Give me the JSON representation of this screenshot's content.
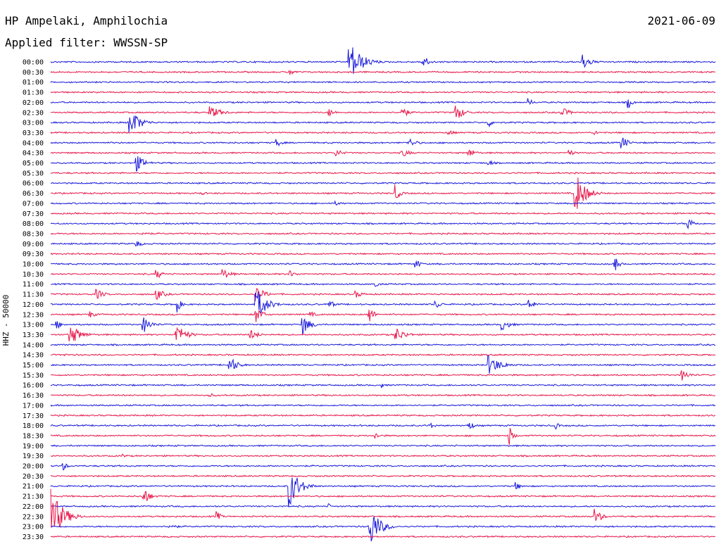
{
  "header": {
    "station": "HP Ampelaki, Amphilochia",
    "date": "2021-06-09",
    "filter": "Applied filter: WWSSN-SP"
  },
  "chart_data": {
    "type": "line",
    "title": "HP Ampelaki, Amphilochia",
    "ylabel": "HHZ - 50000",
    "colors": [
      "#1a1adc",
      "#e8174a"
    ],
    "rows": [
      {
        "label": "00:00",
        "events": [
          [
            0.45,
            30,
            0.6
          ],
          [
            0.56,
            10,
            0.3
          ],
          [
            0.8,
            12,
            0.4
          ]
        ]
      },
      {
        "label": "00:30",
        "events": [
          [
            0.36,
            5,
            0.3
          ]
        ]
      },
      {
        "label": "01:00",
        "events": []
      },
      {
        "label": "01:30",
        "events": []
      },
      {
        "label": "02:00",
        "events": [
          [
            0.72,
            6,
            0.2
          ],
          [
            0.87,
            8,
            0.2
          ]
        ]
      },
      {
        "label": "02:30",
        "events": [
          [
            0.24,
            9,
            0.6
          ],
          [
            0.42,
            6,
            0.3
          ],
          [
            0.53,
            8,
            0.3
          ],
          [
            0.61,
            12,
            0.4
          ],
          [
            0.77,
            7,
            0.4
          ]
        ]
      },
      {
        "label": "03:00",
        "events": [
          [
            0.12,
            20,
            0.5
          ],
          [
            0.66,
            6,
            0.2
          ]
        ]
      },
      {
        "label": "03:30",
        "events": [
          [
            0.6,
            4,
            0.3
          ],
          [
            0.82,
            4,
            0.2
          ]
        ]
      },
      {
        "label": "04:00",
        "events": [
          [
            0.34,
            6,
            0.3
          ],
          [
            0.54,
            6,
            0.4
          ],
          [
            0.86,
            10,
            0.3
          ]
        ]
      },
      {
        "label": "04:30",
        "events": [
          [
            0.43,
            5,
            0.4
          ],
          [
            0.53,
            6,
            0.4
          ],
          [
            0.63,
            6,
            0.4
          ],
          [
            0.78,
            5,
            0.3
          ]
        ]
      },
      {
        "label": "05:00",
        "events": [
          [
            0.13,
            12,
            0.4
          ],
          [
            0.66,
            4,
            0.3
          ]
        ]
      },
      {
        "label": "05:30",
        "events": []
      },
      {
        "label": "06:00",
        "events": []
      },
      {
        "label": "06:30",
        "events": [
          [
            0.23,
            3,
            0.1
          ],
          [
            0.52,
            12,
            0.2
          ],
          [
            0.79,
            30,
            0.5
          ]
        ]
      },
      {
        "label": "07:00",
        "events": [
          [
            0.43,
            3,
            0.3
          ]
        ]
      },
      {
        "label": "07:30",
        "events": []
      },
      {
        "label": "08:00",
        "events": [
          [
            0.96,
            9,
            0.3
          ]
        ]
      },
      {
        "label": "08:30",
        "events": [
          [
            0.14,
            4,
            0.3
          ]
        ]
      },
      {
        "label": "09:00",
        "events": [
          [
            0.13,
            5,
            0.3
          ]
        ]
      },
      {
        "label": "09:30",
        "events": []
      },
      {
        "label": "10:00",
        "events": [
          [
            0.55,
            8,
            0.2
          ],
          [
            0.85,
            10,
            0.2
          ]
        ]
      },
      {
        "label": "10:30",
        "events": [
          [
            0.16,
            7,
            0.3
          ],
          [
            0.26,
            8,
            0.4
          ],
          [
            0.36,
            5,
            0.3
          ],
          [
            0.52,
            3,
            0.2
          ]
        ]
      },
      {
        "label": "11:00",
        "events": [
          [
            0.49,
            5,
            0.2
          ]
        ]
      },
      {
        "label": "11:30",
        "events": [
          [
            0.07,
            7,
            0.4
          ],
          [
            0.16,
            8,
            0.4
          ],
          [
            0.31,
            12,
            0.4
          ],
          [
            0.46,
            5,
            0.4
          ]
        ]
      },
      {
        "label": "12:00",
        "events": [
          [
            0.19,
            12,
            0.2
          ],
          [
            0.31,
            24,
            0.5
          ],
          [
            0.42,
            6,
            0.3
          ],
          [
            0.58,
            6,
            0.3
          ],
          [
            0.72,
            8,
            0.3
          ]
        ]
      },
      {
        "label": "12:30",
        "events": [
          [
            0.06,
            5,
            0.3
          ],
          [
            0.31,
            12,
            0.3
          ],
          [
            0.39,
            5,
            0.3
          ],
          [
            0.48,
            14,
            0.2
          ]
        ]
      },
      {
        "label": "13:00",
        "events": [
          [
            0.01,
            6,
            0.3
          ],
          [
            0.14,
            12,
            0.4
          ],
          [
            0.38,
            14,
            0.4
          ],
          [
            0.68,
            8,
            0.4
          ]
        ]
      },
      {
        "label": "13:30",
        "events": [
          [
            0.03,
            16,
            0.5
          ],
          [
            0.19,
            14,
            0.5
          ],
          [
            0.3,
            8,
            0.4
          ],
          [
            0.52,
            10,
            0.5
          ]
        ]
      },
      {
        "label": "14:00",
        "events": []
      },
      {
        "label": "14:30",
        "events": [
          [
            0.02,
            3,
            0.2
          ]
        ]
      },
      {
        "label": "15:00",
        "events": [
          [
            0.27,
            12,
            0.4
          ],
          [
            0.66,
            14,
            0.6
          ]
        ]
      },
      {
        "label": "15:30",
        "events": [
          [
            0.95,
            8,
            0.4
          ]
        ]
      },
      {
        "label": "16:00",
        "events": [
          [
            0.5,
            4,
            0.1
          ]
        ]
      },
      {
        "label": "16:30",
        "events": [
          [
            0.24,
            3,
            0.3
          ]
        ]
      },
      {
        "label": "17:00",
        "events": []
      },
      {
        "label": "17:30",
        "events": []
      },
      {
        "label": "18:00",
        "events": [
          [
            0.57,
            5,
            0.3
          ],
          [
            0.63,
            6,
            0.3
          ],
          [
            0.76,
            5,
            0.2
          ]
        ]
      },
      {
        "label": "18:30",
        "events": [
          [
            0.49,
            5,
            0.2
          ],
          [
            0.69,
            14,
            0.2
          ]
        ]
      },
      {
        "label": "19:00",
        "events": []
      },
      {
        "label": "19:30",
        "events": [
          [
            0.11,
            3,
            0.2
          ]
        ]
      },
      {
        "label": "20:00",
        "events": [
          [
            0.02,
            6,
            0.2
          ]
        ]
      },
      {
        "label": "20:30",
        "events": []
      },
      {
        "label": "21:00",
        "events": [
          [
            0.36,
            30,
            0.5
          ],
          [
            0.7,
            6,
            0.3
          ]
        ]
      },
      {
        "label": "21:30",
        "events": [
          [
            0.14,
            14,
            0.3
          ]
        ]
      },
      {
        "label": "22:00",
        "events": [
          [
            0.42,
            4,
            0.1
          ]
        ]
      },
      {
        "label": "22:30",
        "events": [
          [
            0.0,
            40,
            0.6
          ],
          [
            0.25,
            8,
            0.2
          ],
          [
            0.82,
            12,
            0.3
          ]
        ]
      },
      {
        "label": "23:00",
        "events": [
          [
            0.48,
            32,
            0.5
          ],
          [
            0.18,
            4,
            0.4
          ]
        ]
      },
      {
        "label": "23:30",
        "events": []
      }
    ]
  }
}
